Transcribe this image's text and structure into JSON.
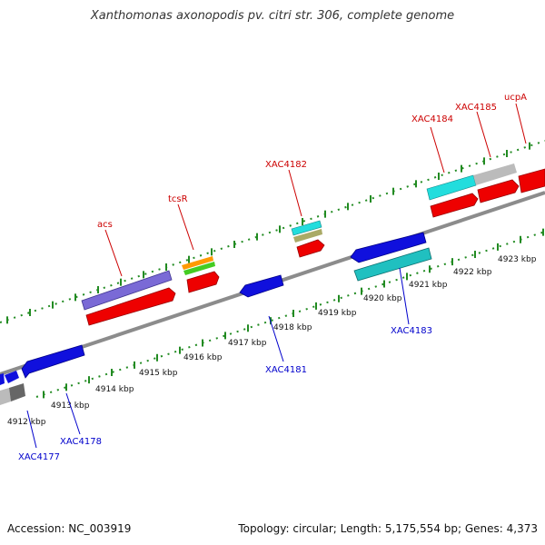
{
  "header": {
    "title": "Xanthomonas axonopodis pv. citri str. 306, complete genome"
  },
  "footer": {
    "accession": "Accession: NC_003919",
    "summary": "Topology: circular; Length: 5,175,554 bp; Genes: 4,373"
  },
  "scale": {
    "ticks": [
      "4912 kbp",
      "4913 kbp",
      "4914 kbp",
      "4915 kbp",
      "4916 kbp",
      "4917 kbp",
      "4918 kbp",
      "4919 kbp",
      "4920 kbp",
      "4921 kbp",
      "4922 kbp",
      "4923 kbp"
    ]
  },
  "labels": {
    "top": [
      "acs",
      "tcsR",
      "XAC4182",
      "XAC4184",
      "XAC4185",
      "ucpA"
    ],
    "bottom": [
      "XAC4177",
      "XAC4178",
      "XAC4181",
      "XAC4183"
    ]
  },
  "colors": {
    "label_top": "#cc0000",
    "label_bottom": "#0000cc",
    "backbone": "#8c8c8c",
    "tick": "#228b22",
    "red_feature": "#ee0000",
    "blue_feature": "#1010dd",
    "purple_feature": "#7a6ad6",
    "cyan_feature": "#22dddd",
    "teal_feature": "#20c0c0",
    "gray_feature": "#bbbbbb",
    "orange_feature": "#ff9900",
    "green_feature": "#44cc22",
    "olive_feature": "#aaaa66"
  }
}
